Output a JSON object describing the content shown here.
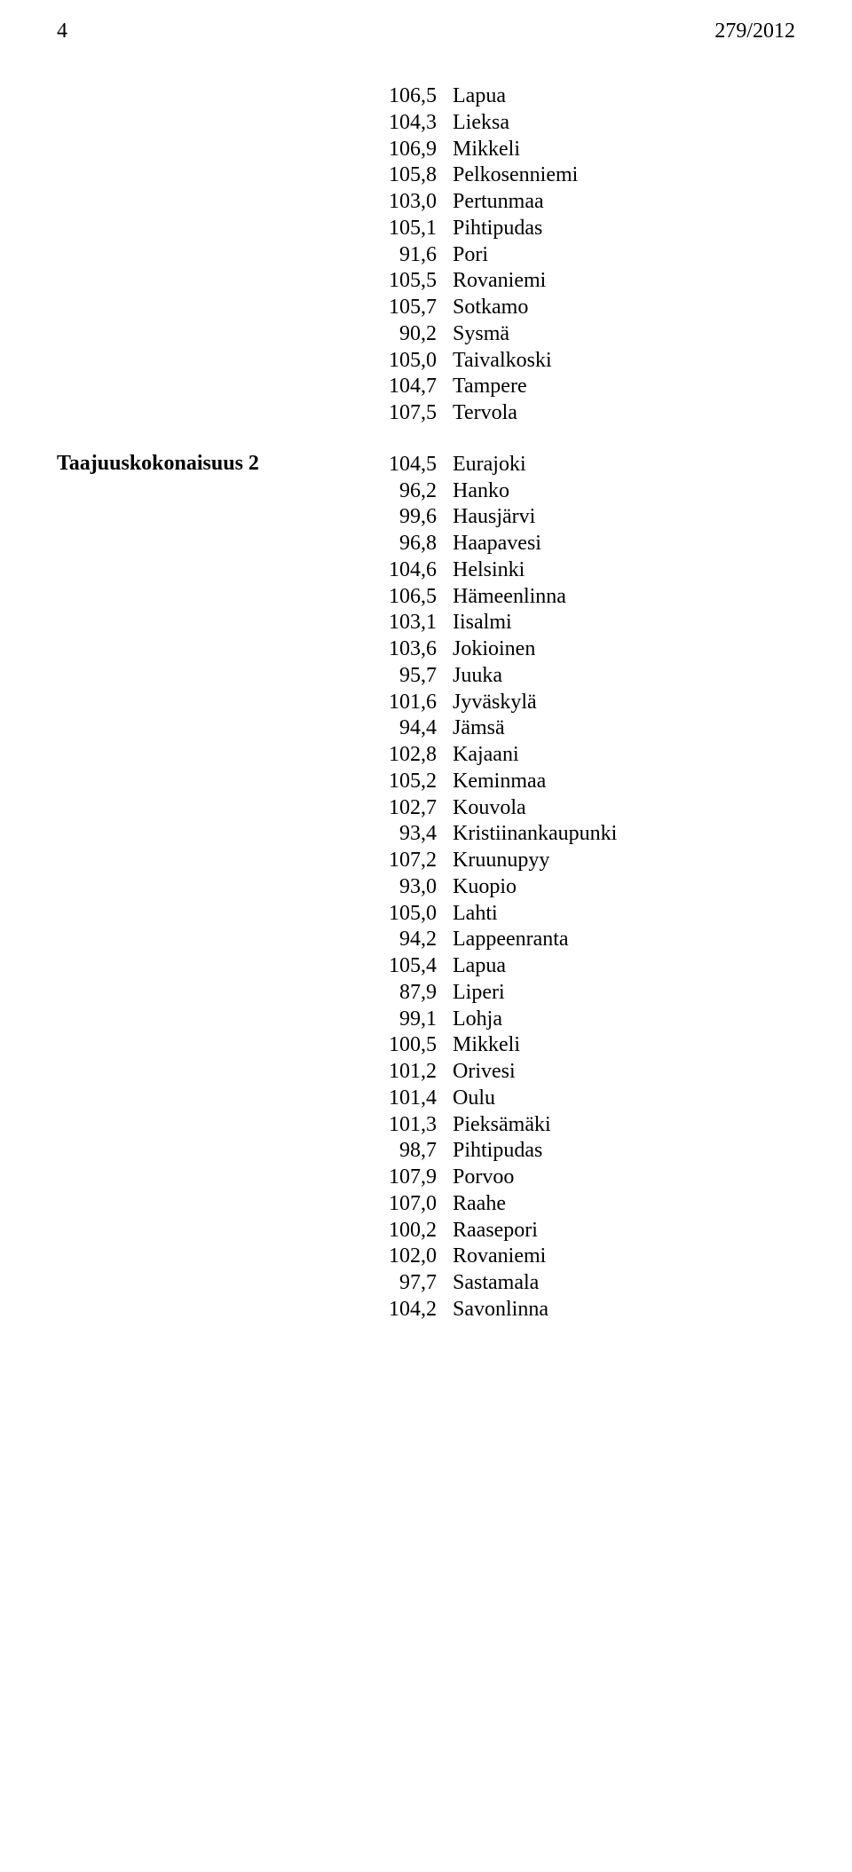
{
  "page_number": "4",
  "doc_number": "279/2012",
  "sections": [
    {
      "label": "",
      "rows": [
        {
          "num": "106,5",
          "name": "Lapua"
        },
        {
          "num": "104,3",
          "name": "Lieksa"
        },
        {
          "num": "106,9",
          "name": "Mikkeli"
        },
        {
          "num": "105,8",
          "name": "Pelkosenniemi"
        },
        {
          "num": "103,0",
          "name": "Pertunmaa"
        },
        {
          "num": "105,1",
          "name": "Pihtipudas"
        },
        {
          "num": "91,6",
          "name": "Pori"
        },
        {
          "num": "105,5",
          "name": "Rovaniemi"
        },
        {
          "num": "105,7",
          "name": "Sotkamo"
        },
        {
          "num": "90,2",
          "name": "Sysmä"
        },
        {
          "num": "105,0",
          "name": "Taivalkoski"
        },
        {
          "num": "104,7",
          "name": "Tampere"
        },
        {
          "num": "107,5",
          "name": "Tervola"
        }
      ]
    },
    {
      "label": "Taajuuskokonaisuus 2",
      "rows": [
        {
          "num": "104,5",
          "name": "Eurajoki"
        },
        {
          "num": "96,2",
          "name": "Hanko"
        },
        {
          "num": "99,6",
          "name": "Hausjärvi"
        },
        {
          "num": "96,8",
          "name": "Haapavesi"
        },
        {
          "num": "104,6",
          "name": "Helsinki"
        },
        {
          "num": "106,5",
          "name": "Hämeenlinna"
        },
        {
          "num": "103,1",
          "name": "Iisalmi"
        },
        {
          "num": "103,6",
          "name": "Jokioinen"
        },
        {
          "num": "95,7",
          "name": "Juuka"
        },
        {
          "num": "101,6",
          "name": "Jyväskylä"
        },
        {
          "num": "94,4",
          "name": "Jämsä"
        },
        {
          "num": "102,8",
          "name": "Kajaani"
        },
        {
          "num": "105,2",
          "name": "Keminmaa"
        },
        {
          "num": "102,7",
          "name": "Kouvola"
        },
        {
          "num": "93,4",
          "name": "Kristiinankaupunki"
        },
        {
          "num": "107,2",
          "name": "Kruunupyy"
        },
        {
          "num": "93,0",
          "name": "Kuopio"
        },
        {
          "num": "105,0",
          "name": "Lahti"
        },
        {
          "num": "94,2",
          "name": "Lappeenranta"
        },
        {
          "num": "105,4",
          "name": "Lapua"
        },
        {
          "num": "87,9",
          "name": "Liperi"
        },
        {
          "num": "99,1",
          "name": "Lohja"
        },
        {
          "num": "100,5",
          "name": "Mikkeli"
        },
        {
          "num": "101,2",
          "name": "Orivesi"
        },
        {
          "num": "101,4",
          "name": "Oulu"
        },
        {
          "num": "101,3",
          "name": "Pieksämäki"
        },
        {
          "num": "98,7",
          "name": "Pihtipudas"
        },
        {
          "num": "107,9",
          "name": "Porvoo"
        },
        {
          "num": "107,0",
          "name": "Raahe"
        },
        {
          "num": "100,2",
          "name": "Raasepori"
        },
        {
          "num": "102,0",
          "name": "Rovaniemi"
        },
        {
          "num": "97,7",
          "name": "Sastamala"
        },
        {
          "num": "104,2",
          "name": "Savonlinna"
        }
      ]
    }
  ]
}
